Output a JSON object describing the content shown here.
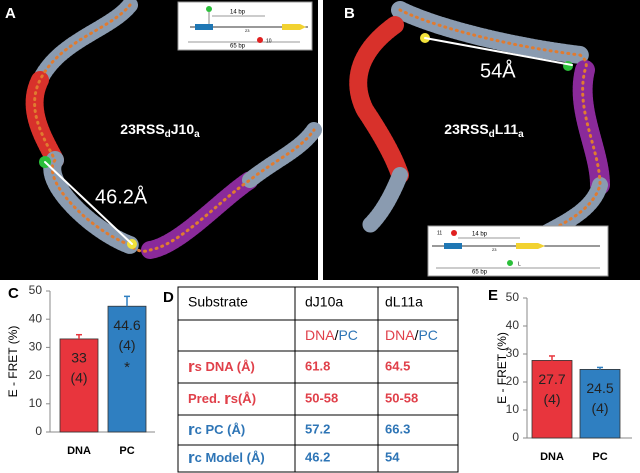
{
  "panels": {
    "a": {
      "letter": "A",
      "name": [
        "23RSS",
        "d",
        "J10",
        "a"
      ],
      "distance": "46.2Å",
      "inset": {
        "short": "14 bp",
        "long": "65 bp",
        "dye": "10",
        "site": "23"
      }
    },
    "b": {
      "letter": "B",
      "name": [
        "23RSS",
        "d",
        "L11",
        "a"
      ],
      "distance": "54Å",
      "inset": {
        "short": "14 bp",
        "long": "65 bp",
        "dye": "11",
        "site": "23",
        "linker": "L"
      }
    }
  },
  "table": {
    "letter": "D",
    "header": [
      "Substrate",
      "dJ10a",
      "dL11a"
    ],
    "subheader": [
      [
        "DNA",
        "/",
        "PC"
      ],
      [
        "DNA",
        "/",
        "PC"
      ]
    ],
    "rows": [
      {
        "label": [
          "r",
          "s DNA (Å)"
        ],
        "values": [
          "61.8",
          "64.5"
        ]
      },
      {
        "label": [
          "Pred. ",
          "r",
          "s(Å)"
        ],
        "values": [
          "50-58",
          "50-58"
        ]
      },
      {
        "label": [
          "r",
          "c PC (Å)"
        ],
        "values": [
          "57.2",
          "66.3"
        ]
      },
      {
        "label": [
          "r",
          "c Model (Å)"
        ],
        "values": [
          "46.2",
          "54"
        ]
      }
    ]
  },
  "chart_data": [
    {
      "type": "bar",
      "label": "C",
      "ylabel": "E - FRET (%)",
      "categories": [
        "DNA",
        "PC"
      ],
      "values": [
        33,
        44.6
      ],
      "errors": [
        1.5,
        3.5
      ],
      "n_labels": [
        "(4)",
        "(4)"
      ],
      "significance": [
        null,
        "*"
      ],
      "colors": [
        "#e8353d",
        "#2f7fc1"
      ],
      "ylim": [
        0,
        50
      ],
      "yticks": [
        0,
        10,
        20,
        30,
        40,
        50
      ]
    },
    {
      "type": "bar",
      "label": "E",
      "ylabel": "E - FRET (%)",
      "categories": [
        "DNA",
        "PC"
      ],
      "values": [
        27.7,
        24.5
      ],
      "errors": [
        1.6,
        0.7
      ],
      "n_labels": [
        "(4)",
        "(4)"
      ],
      "significance": [
        null,
        null
      ],
      "colors": [
        "#e8353d",
        "#2f7fc1"
      ],
      "ylim": [
        0,
        50
      ],
      "yticks": [
        0,
        10,
        20,
        30,
        40,
        50
      ]
    }
  ]
}
